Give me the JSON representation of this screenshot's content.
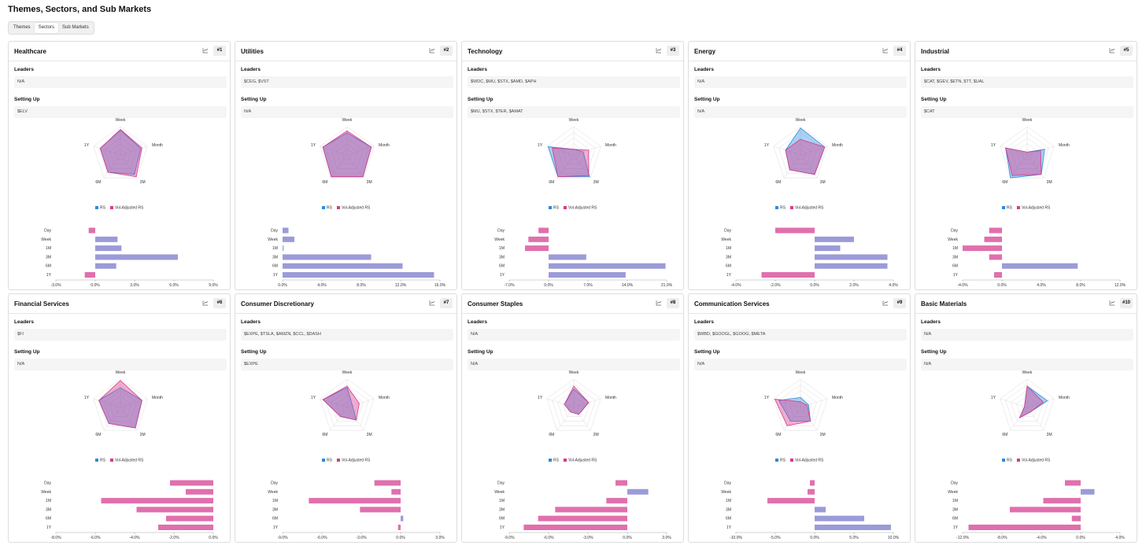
{
  "header": {
    "title": "Themes, Sectors, and Sub Markets",
    "tabs": [
      "Themes",
      "Sectors",
      "Sub Markets"
    ],
    "active_tab": 1
  },
  "cards": [
    {
      "title": "Healthcare",
      "rank": "#1",
      "leaders_label": "Leaders",
      "leaders": "N/A",
      "setting_up_label": "Setting Up",
      "setting_up": "$ELV",
      "radar": {
        "type": "radar",
        "axes": [
          "Week",
          "Month",
          "3M",
          "6M",
          "1Y"
        ],
        "rlim": [
          0,
          100
        ],
        "series": [
          {
            "name": "RS",
            "color": "#2b8be0",
            "values": [
              88,
              75,
              85,
              75,
              75
            ]
          },
          {
            "name": "Vol-Adjusted RS",
            "color": "#d9388a",
            "values": [
              90,
              80,
              95,
              75,
              75
            ]
          }
        ]
      },
      "bars": {
        "type": "bar",
        "orientation": "horizontal",
        "categories": [
          "Day",
          "Week",
          "1M",
          "3M",
          "6M",
          "1Y"
        ],
        "values": [
          -0.5,
          1.7,
          2.0,
          6.3,
          1.6,
          -0.8
        ],
        "positive_color": "#9b9bd8",
        "negative_color": "#e070ad",
        "xlim": [
          -3,
          9
        ],
        "xticks": [
          {
            "value": -3,
            "label": "-3.0%"
          },
          {
            "value": 0,
            "label": "0.0%"
          },
          {
            "value": 3,
            "label": "3.0%"
          },
          {
            "value": 6,
            "label": "6.0%"
          },
          {
            "value": 9,
            "label": "9.0%"
          }
        ]
      }
    },
    {
      "title": "Utilities",
      "rank": "#2",
      "leaders_label": "Leaders",
      "leaders": "$CEG, $VST",
      "setting_up_label": "Setting Up",
      "setting_up": "N/A",
      "radar": {
        "type": "radar",
        "axes": [
          "Week",
          "Month",
          "3M",
          "6M",
          "1Y"
        ],
        "rlim": [
          0,
          100
        ],
        "series": [
          {
            "name": "RS",
            "color": "#2b8be0",
            "values": [
              78,
              90,
              95,
              95,
              90
            ]
          },
          {
            "name": "Vol-Adjusted RS",
            "color": "#d9388a",
            "values": [
              85,
              90,
              95,
              95,
              90
            ]
          }
        ]
      },
      "bars": {
        "type": "bar",
        "orientation": "horizontal",
        "categories": [
          "Day",
          "Week",
          "1M",
          "3M",
          "6M",
          "1Y"
        ],
        "values": [
          0.6,
          1.2,
          0.1,
          9.0,
          12.2,
          15.4
        ],
        "positive_color": "#9b9bd8",
        "negative_color": "#e070ad",
        "xlim": [
          0,
          16
        ],
        "xticks": [
          {
            "value": 0,
            "label": "0.0%"
          },
          {
            "value": 4,
            "label": "4.0%"
          },
          {
            "value": 8,
            "label": "8.0%"
          },
          {
            "value": 12,
            "label": "12.0%"
          },
          {
            "value": 16,
            "label": "16.0%"
          }
        ]
      }
    },
    {
      "title": "Technology",
      "rank": "#3",
      "leaders_label": "Leaders",
      "leaders": "$WDC, $MU, $STX, $AMD, $APH",
      "setting_up_label": "Setting Up",
      "setting_up": "$MU, $STX, $TER, $AMAT",
      "radar": {
        "type": "radar",
        "axes": [
          "Week",
          "Month",
          "3M",
          "6M",
          "1Y"
        ],
        "rlim": [
          0,
          100
        ],
        "series": [
          {
            "name": "RS",
            "color": "#2b8be0",
            "values": [
              20,
              35,
              95,
              95,
              95
            ]
          },
          {
            "name": "Vol-Adjusted RS",
            "color": "#d9388a",
            "values": [
              20,
              55,
              90,
              95,
              80
            ]
          }
        ]
      },
      "bars": {
        "type": "bar",
        "orientation": "horizontal",
        "categories": [
          "Day",
          "Week",
          "1M",
          "3M",
          "6M",
          "1Y"
        ],
        "values": [
          -1.8,
          -3.6,
          -4.2,
          6.7,
          20.8,
          13.7
        ],
        "positive_color": "#9b9bd8",
        "negative_color": "#e070ad",
        "xlim": [
          -7,
          21
        ],
        "xticks": [
          {
            "value": -7,
            "label": "-7.0%"
          },
          {
            "value": 0,
            "label": "0.0%"
          },
          {
            "value": 7,
            "label": "7.0%"
          },
          {
            "value": 14,
            "label": "14.0%"
          },
          {
            "value": 21,
            "label": "21.0%"
          }
        ]
      }
    },
    {
      "title": "Energy",
      "rank": "#4",
      "leaders_label": "Leaders",
      "leaders": "N/A",
      "setting_up_label": "Setting Up",
      "setting_up": "N/A",
      "radar": {
        "type": "radar",
        "axes": [
          "Week",
          "Month",
          "3M",
          "6M",
          "1Y"
        ],
        "rlim": [
          0,
          100
        ],
        "series": [
          {
            "name": "RS",
            "color": "#2b8be0",
            "values": [
              95,
              90,
              85,
              65,
              55
            ]
          },
          {
            "name": "Vol-Adjusted RS",
            "color": "#d9388a",
            "values": [
              55,
              90,
              85,
              65,
              55
            ]
          }
        ]
      },
      "bars": {
        "type": "bar",
        "orientation": "horizontal",
        "categories": [
          "Day",
          "Week",
          "1M",
          "3M",
          "6M",
          "1Y"
        ],
        "values": [
          -2.0,
          2.0,
          1.3,
          3.7,
          3.7,
          -2.7
        ],
        "positive_color": "#9b9bd8",
        "negative_color": "#e070ad",
        "xlim": [
          -4,
          4
        ],
        "xticks": [
          {
            "value": -4,
            "label": "-4.0%"
          },
          {
            "value": -2,
            "label": "-2.0%"
          },
          {
            "value": 0,
            "label": "0.0%"
          },
          {
            "value": 2,
            "label": "2.0%"
          },
          {
            "value": 4,
            "label": "4.0%"
          }
        ]
      }
    },
    {
      "title": "Industrial",
      "rank": "#5",
      "leaders_label": "Leaders",
      "leaders": "$CAT, $GEV, $ETN, $TT, $UAL",
      "setting_up_label": "Setting Up",
      "setting_up": "$CAT",
      "radar": {
        "type": "radar",
        "axes": [
          "Week",
          "Month",
          "3M",
          "6M",
          "1Y"
        ],
        "rlim": [
          0,
          100
        ],
        "series": [
          {
            "name": "RS",
            "color": "#2b8be0",
            "values": [
              10,
              65,
              85,
              100,
              80
            ]
          },
          {
            "name": "Vol-Adjusted RS",
            "color": "#d9388a",
            "values": [
              10,
              50,
              85,
              90,
              80
            ]
          }
        ]
      },
      "bars": {
        "type": "bar",
        "orientation": "horizontal",
        "categories": [
          "Day",
          "Week",
          "1M",
          "3M",
          "6M",
          "1Y"
        ],
        "values": [
          -1.3,
          -1.8,
          -4.0,
          -1.3,
          7.7,
          -0.8
        ],
        "positive_color": "#9b9bd8",
        "negative_color": "#e070ad",
        "xlim": [
          -4,
          12
        ],
        "xticks": [
          {
            "value": -4,
            "label": "-4.0%"
          },
          {
            "value": 0,
            "label": "0.0%"
          },
          {
            "value": 4,
            "label": "4.0%"
          },
          {
            "value": 8,
            "label": "8.0%"
          },
          {
            "value": 12,
            "label": "12.0%"
          }
        ]
      }
    },
    {
      "title": "Financial Services",
      "rank": "#6",
      "leaders_label": "Leaders",
      "leaders": "$FI",
      "setting_up_label": "Setting Up",
      "setting_up": "N/A",
      "radar": {
        "type": "radar",
        "axes": [
          "Week",
          "Month",
          "3M",
          "6M",
          "1Y"
        ],
        "rlim": [
          0,
          100
        ],
        "series": [
          {
            "name": "RS",
            "color": "#2b8be0",
            "values": [
              70,
              80,
              90,
              70,
              80
            ]
          },
          {
            "name": "Vol-Adjusted RS",
            "color": "#d9388a",
            "values": [
              95,
              80,
              90,
              70,
              80
            ]
          }
        ]
      },
      "bars": {
        "type": "bar",
        "orientation": "horizontal",
        "categories": [
          "Day",
          "Week",
          "1M",
          "3M",
          "6M",
          "1Y"
        ],
        "values": [
          -2.2,
          -1.4,
          -5.7,
          -3.9,
          -2.4,
          -2.8
        ],
        "positive_color": "#9b9bd8",
        "negative_color": "#e070ad",
        "xlim": [
          -8,
          0
        ],
        "xticks": [
          {
            "value": -8,
            "label": "-8.0%"
          },
          {
            "value": -6,
            "label": "-6.0%"
          },
          {
            "value": -4,
            "label": "-4.0%"
          },
          {
            "value": -2,
            "label": "-2.0%"
          },
          {
            "value": 0,
            "label": "0.0%"
          }
        ]
      }
    },
    {
      "title": "Consumer Discretionary",
      "rank": "#7",
      "leaders_label": "Leaders",
      "leaders": "$EXPE, $TSLA, $AMZN, $CCL, $DASH",
      "setting_up_label": "Setting Up",
      "setting_up": "$EXPE",
      "radar": {
        "type": "radar",
        "axes": [
          "Week",
          "Month",
          "3M",
          "6M",
          "1Y"
        ],
        "rlim": [
          0,
          100
        ],
        "series": [
          {
            "name": "RS",
            "color": "#2b8be0",
            "values": [
              70,
              20,
              55,
              40,
              90
            ]
          },
          {
            "name": "Vol-Adjusted RS",
            "color": "#d9388a",
            "values": [
              75,
              45,
              55,
              40,
              90
            ]
          }
        ]
      },
      "bars": {
        "type": "bar",
        "orientation": "horizontal",
        "categories": [
          "Day",
          "Week",
          "1M",
          "3M",
          "6M",
          "1Y"
        ],
        "values": [
          -2.0,
          -0.7,
          -7.0,
          -3.1,
          0.2,
          -0.2
        ],
        "positive_color": "#9b9bd8",
        "negative_color": "#e070ad",
        "xlim": [
          -9,
          3
        ],
        "xticks": [
          {
            "value": -9,
            "label": "-9.0%"
          },
          {
            "value": -6,
            "label": "-6.0%"
          },
          {
            "value": -3,
            "label": "-3.0%"
          },
          {
            "value": 0,
            "label": "0.0%"
          },
          {
            "value": 3,
            "label": "3.0%"
          }
        ]
      }
    },
    {
      "title": "Consumer Staples",
      "rank": "#8",
      "leaders_label": "Leaders",
      "leaders": "N/A",
      "setting_up_label": "Setting Up",
      "setting_up": "N/A",
      "radar": {
        "type": "radar",
        "axes": [
          "Week",
          "Month",
          "3M",
          "6M",
          "1Y"
        ],
        "rlim": [
          0,
          100
        ],
        "series": [
          {
            "name": "RS",
            "color": "#2b8be0",
            "values": [
              65,
              55,
              30,
              20,
              35
            ]
          },
          {
            "name": "Vol-Adjusted RS",
            "color": "#d9388a",
            "values": [
              75,
              55,
              30,
              20,
              35
            ]
          }
        ]
      },
      "bars": {
        "type": "bar",
        "orientation": "horizontal",
        "categories": [
          "Day",
          "Week",
          "1M",
          "3M",
          "6M",
          "1Y"
        ],
        "values": [
          -0.9,
          1.6,
          -1.6,
          -5.5,
          -6.8,
          -7.9
        ],
        "positive_color": "#9b9bd8",
        "negative_color": "#e070ad",
        "xlim": [
          -9,
          3
        ],
        "xticks": [
          {
            "value": -9,
            "label": "-9.0%"
          },
          {
            "value": -6,
            "label": "-6.0%"
          },
          {
            "value": -3,
            "label": "-3.0%"
          },
          {
            "value": 0,
            "label": "0.0%"
          },
          {
            "value": 3,
            "label": "3.0%"
          }
        ]
      }
    },
    {
      "title": "Communication Services",
      "rank": "#9",
      "leaders_label": "Leaders",
      "leaders": "$WBD, $GOOGL, $GOOG, $META",
      "setting_up_label": "Setting Up",
      "setting_up": "N/A",
      "radar": {
        "type": "radar",
        "axes": [
          "Week",
          "Month",
          "3M",
          "6M",
          "1Y"
        ],
        "rlim": [
          0,
          100
        ],
        "series": [
          {
            "name": "RS",
            "color": "#2b8be0",
            "values": [
              35,
              30,
              60,
              60,
              80
            ]
          },
          {
            "name": "Vol-Adjusted RS",
            "color": "#d9388a",
            "values": [
              20,
              25,
              60,
              80,
              95
            ]
          }
        ]
      },
      "bars": {
        "type": "bar",
        "orientation": "horizontal",
        "categories": [
          "Day",
          "Week",
          "1M",
          "3M",
          "6M",
          "1Y"
        ],
        "values": [
          -0.6,
          -0.9,
          -6.0,
          1.4,
          6.3,
          9.7
        ],
        "positive_color": "#9b9bd8",
        "negative_color": "#e070ad",
        "xlim": [
          -10,
          10
        ],
        "xticks": [
          {
            "value": -10,
            "label": "-10.0%"
          },
          {
            "value": -5,
            "label": "-5.0%"
          },
          {
            "value": 0,
            "label": "0.0%"
          },
          {
            "value": 5,
            "label": "5.0%"
          },
          {
            "value": 10,
            "label": "10.0%"
          }
        ]
      }
    },
    {
      "title": "Basic Materials",
      "rank": "#10",
      "leaders_label": "Leaders",
      "leaders": "N/A",
      "setting_up_label": "Setting Up",
      "setting_up": "N/A",
      "radar": {
        "type": "radar",
        "axes": [
          "Week",
          "Month",
          "3M",
          "6M",
          "1Y"
        ],
        "rlim": [
          0,
          100
        ],
        "series": [
          {
            "name": "RS",
            "color": "#2b8be0",
            "values": [
              75,
              75,
              20,
              45,
              10
            ]
          },
          {
            "name": "Vol-Adjusted RS",
            "color": "#d9388a",
            "values": [
              75,
              60,
              20,
              45,
              10
            ]
          }
        ]
      },
      "bars": {
        "type": "bar",
        "orientation": "horizontal",
        "categories": [
          "Day",
          "Week",
          "1M",
          "3M",
          "6M",
          "1Y"
        ],
        "values": [
          -1.6,
          1.4,
          -3.8,
          -7.2,
          -0.9,
          -11.4
        ],
        "positive_color": "#9b9bd8",
        "negative_color": "#e070ad",
        "xlim": [
          -12,
          4
        ],
        "xticks": [
          {
            "value": -12,
            "label": "-12.0%"
          },
          {
            "value": -8,
            "label": "-8.0%"
          },
          {
            "value": -4,
            "label": "-4.0%"
          },
          {
            "value": 0,
            "label": "0.0%"
          },
          {
            "value": 4,
            "label": "4.0%"
          }
        ]
      }
    }
  ]
}
